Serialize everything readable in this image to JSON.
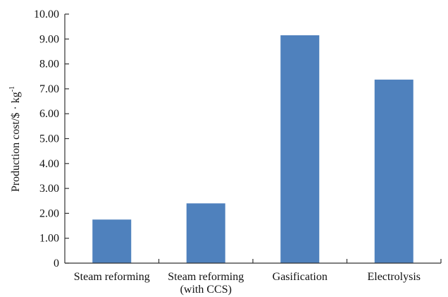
{
  "chart_data": {
    "type": "bar",
    "title": "",
    "xlabel": "",
    "ylabel": "Production cost/$ · kg",
    "ylabel_superscript": "-1",
    "ylim": [
      0,
      10
    ],
    "yticks": [
      "0",
      "1.00",
      "2.00",
      "3.00",
      "4.00",
      "5.00",
      "6.00",
      "7.00",
      "8.00",
      "9.00",
      "10.00"
    ],
    "categories": [
      [
        "Steam reforming"
      ],
      [
        "Steam reforming",
        "(with CCS)"
      ],
      [
        "Gasification"
      ],
      [
        "Electrolysis"
      ]
    ],
    "values": [
      1.75,
      2.4,
      9.15,
      7.37
    ],
    "bar_color": "#4f81bd",
    "grid": false,
    "legend": "none"
  }
}
